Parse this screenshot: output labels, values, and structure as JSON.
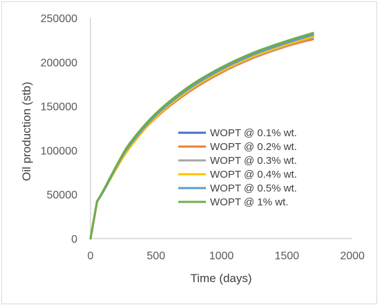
{
  "chart_data": {
    "type": "line",
    "title": "",
    "xlabel": "Time (days)",
    "ylabel": "Oil production (stb)",
    "xlim": [
      0,
      2000
    ],
    "ylim": [
      0,
      250000
    ],
    "xticks": [
      0,
      500,
      1000,
      1500,
      2000
    ],
    "yticks": [
      0,
      50000,
      100000,
      150000,
      200000,
      250000
    ],
    "grid": false,
    "legend_position": "right-center",
    "series": [
      {
        "name": "WOPT @ 0.1% wt.",
        "color": "#4472c4",
        "x": [
          0,
          50,
          100,
          200,
          300,
          500,
          750,
          1000,
          1250,
          1500,
          1700
        ],
        "y": [
          0,
          42000,
          54000,
          82000,
          106000,
          140000,
          170000,
          192000,
          209000,
          222000,
          230000
        ]
      },
      {
        "name": "WOPT @ 0.2% wt.",
        "color": "#ed7d31",
        "x": [
          0,
          50,
          100,
          200,
          300,
          500,
          750,
          1000,
          1250,
          1500,
          1700
        ],
        "y": [
          0,
          42000,
          54000,
          80000,
          104000,
          137000,
          166000,
          188000,
          205000,
          218000,
          226000
        ]
      },
      {
        "name": "WOPT @ 0.3% wt.",
        "color": "#a5a5a5",
        "x": [
          0,
          50,
          100,
          200,
          300,
          500,
          750,
          1000,
          1250,
          1500,
          1700
        ],
        "y": [
          0,
          42000,
          54000,
          81000,
          105000,
          138000,
          167000,
          189000,
          206000,
          219000,
          228000
        ]
      },
      {
        "name": "WOPT @ 0.4% wt.",
        "color": "#ffc000",
        "x": [
          0,
          50,
          100,
          200,
          300,
          500,
          750,
          1000,
          1250,
          1500,
          1700
        ],
        "y": [
          0,
          42000,
          54000,
          80000,
          103000,
          138000,
          168000,
          190000,
          207000,
          220000,
          229000
        ]
      },
      {
        "name": "WOPT @ 0.5% wt.",
        "color": "#5b9bd5",
        "x": [
          0,
          50,
          100,
          200,
          300,
          500,
          750,
          1000,
          1250,
          1500,
          1700
        ],
        "y": [
          0,
          42000,
          54000,
          82000,
          106000,
          140000,
          170000,
          192000,
          209000,
          222000,
          231000
        ]
      },
      {
        "name": "WOPT @ 1% wt.",
        "color": "#70ad47",
        "x": [
          0,
          50,
          100,
          200,
          300,
          500,
          750,
          1000,
          1250,
          1500,
          1700
        ],
        "y": [
          0,
          42000,
          55000,
          83000,
          108000,
          142000,
          172000,
          194000,
          211000,
          224000,
          233000
        ]
      }
    ]
  },
  "axis_color": "#bfbfbf"
}
